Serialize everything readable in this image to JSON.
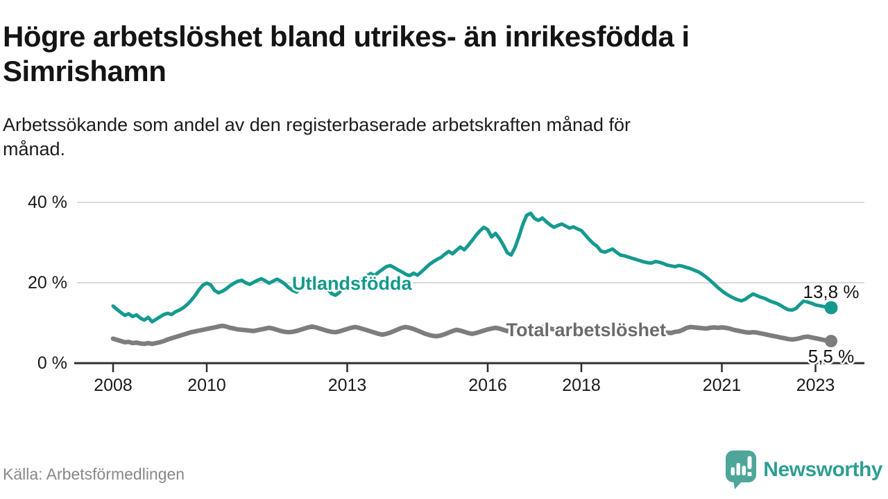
{
  "header": {
    "title": "Högre arbetslöshet bland utrikes- än inrikesfödda i\nSimrishamn",
    "subtitle": "Arbetssökande som andel av den registerbaserade arbetskraften månad för\nmånad."
  },
  "footer": {
    "source": "Källa: Arbetsförmedlingen",
    "brand": "Newsworthy"
  },
  "colors": {
    "grid": "#d8d8d8",
    "axis": "#2f2f2f",
    "tick_label": "#1a1a1a",
    "accent_teal": "#149a8e",
    "neutral_gray": "#7d7d7d",
    "logo_teal": "#4ea69a"
  },
  "chart_data": {
    "type": "line",
    "x_start": 2008,
    "x_step_months": 1,
    "x_ticks": [
      2008,
      2010,
      2013,
      2016,
      2018,
      2021,
      2023
    ],
    "y_ticks": [
      0,
      20,
      40
    ],
    "y_tick_suffix": " %",
    "ylim": [
      0,
      42
    ],
    "grid": "horizontal-only",
    "series": [
      {
        "id": "utlandsfodda",
        "name": "Utlandsfödda",
        "color": "#149a8e",
        "label_color": "#11998c",
        "end_label": "13,8 %",
        "label_pos": {
          "year": 2013.1,
          "value": 19.8
        },
        "values": [
          14.2,
          13.4,
          12.6,
          11.9,
          12.3,
          11.6,
          12.0,
          11.2,
          10.7,
          11.4,
          10.3,
          10.9,
          11.5,
          12.1,
          12.4,
          12.1,
          12.8,
          13.2,
          13.8,
          14.6,
          15.6,
          16.8,
          18.2,
          19.4,
          19.9,
          19.5,
          18.1,
          17.5,
          17.9,
          18.5,
          19.3,
          19.9,
          20.4,
          20.6,
          20.0,
          19.6,
          20.1,
          20.6,
          21.0,
          20.5,
          19.9,
          20.4,
          20.9,
          20.4,
          19.7,
          18.8,
          18.1,
          17.7,
          18.4,
          19.2,
          19.9,
          20.4,
          20.7,
          20.1,
          19.3,
          18.4,
          17.3,
          16.9,
          17.6,
          18.8,
          19.6,
          20.1,
          19.8,
          20.4,
          21.1,
          21.7,
          22.3,
          21.8,
          22.6,
          23.3,
          24.0,
          24.3,
          23.8,
          23.2,
          22.7,
          22.1,
          21.8,
          22.4,
          21.9,
          22.7,
          23.6,
          24.5,
          25.2,
          25.8,
          26.3,
          27.1,
          27.8,
          27.2,
          28.1,
          28.9,
          28.2,
          29.3,
          30.5,
          31.8,
          32.9,
          33.8,
          33.2,
          31.4,
          32.3,
          31.0,
          29.4,
          27.5,
          26.9,
          28.8,
          31.5,
          34.5,
          36.8,
          37.3,
          36.0,
          35.5,
          36.1,
          35.2,
          34.4,
          33.8,
          34.3,
          34.6,
          34.1,
          33.6,
          33.9,
          33.4,
          33.0,
          31.9,
          30.8,
          29.8,
          29.1,
          27.9,
          27.6,
          28.0,
          28.4,
          27.6,
          26.9,
          26.7,
          26.4,
          26.1,
          25.8,
          25.5,
          25.2,
          25.0,
          24.9,
          25.3,
          25.1,
          24.8,
          24.4,
          24.2,
          24.0,
          24.3,
          24.1,
          23.8,
          23.5,
          23.1,
          22.7,
          22.1,
          21.4,
          20.6,
          19.7,
          18.8,
          18.0,
          17.3,
          16.7,
          16.2,
          15.8,
          15.5,
          15.9,
          16.6,
          17.2,
          16.8,
          16.4,
          16.1,
          15.6,
          15.2,
          14.9,
          14.4,
          13.8,
          13.3,
          13.2,
          13.6,
          14.6,
          15.5,
          15.2,
          14.9,
          14.5,
          14.3,
          14.1,
          13.9,
          13.8
        ]
      },
      {
        "id": "total",
        "name": "Total arbetslöshet",
        "color": "#7d7d7d",
        "label_color": "#6b6b6b",
        "end_label": "5,5 %",
        "label_pos": {
          "year": 2018.1,
          "value": 8.3
        },
        "values": [
          6.1,
          5.8,
          5.5,
          5.2,
          5.3,
          5.0,
          5.1,
          4.9,
          4.8,
          5.0,
          4.8,
          5.0,
          5.2,
          5.5,
          5.9,
          6.2,
          6.5,
          6.8,
          7.1,
          7.4,
          7.7,
          7.9,
          8.1,
          8.3,
          8.5,
          8.7,
          8.9,
          9.1,
          9.3,
          9.1,
          8.8,
          8.6,
          8.4,
          8.3,
          8.2,
          8.1,
          8.0,
          8.2,
          8.4,
          8.6,
          8.8,
          8.6,
          8.3,
          8.0,
          7.8,
          7.7,
          7.8,
          8.0,
          8.3,
          8.6,
          8.9,
          9.1,
          8.9,
          8.6,
          8.3,
          8.0,
          7.8,
          7.7,
          7.9,
          8.2,
          8.5,
          8.8,
          9.0,
          8.8,
          8.5,
          8.2,
          7.9,
          7.6,
          7.3,
          7.1,
          7.3,
          7.6,
          8.0,
          8.4,
          8.8,
          9.0,
          8.8,
          8.5,
          8.1,
          7.7,
          7.3,
          7.0,
          6.8,
          6.7,
          6.9,
          7.2,
          7.6,
          8.0,
          8.3,
          8.1,
          7.8,
          7.5,
          7.3,
          7.5,
          7.8,
          8.1,
          8.4,
          8.6,
          8.8,
          8.6,
          8.3,
          8.0,
          8.3,
          8.6,
          8.8,
          8.9,
          8.8,
          8.7,
          8.8,
          8.9,
          9.0,
          8.8,
          8.6,
          8.4,
          8.3,
          8.5,
          8.7,
          8.8,
          8.7,
          8.6,
          8.6,
          8.7,
          8.5,
          8.3,
          8.1,
          7.9,
          7.8,
          8.0,
          8.2,
          8.1,
          8.0,
          7.9,
          8.0,
          8.1,
          8.0,
          7.9,
          7.8,
          7.7,
          7.6,
          7.7,
          7.8,
          7.7,
          7.6,
          7.5,
          7.8,
          7.9,
          8.3,
          8.8,
          9.0,
          8.9,
          8.8,
          8.7,
          8.6,
          8.8,
          8.9,
          8.8,
          8.9,
          8.8,
          8.6,
          8.3,
          8.1,
          7.9,
          7.7,
          7.6,
          7.7,
          7.6,
          7.4,
          7.2,
          7.0,
          6.8,
          6.6,
          6.4,
          6.2,
          6.0,
          5.9,
          6.0,
          6.2,
          6.5,
          6.6,
          6.4,
          6.2,
          6.0,
          5.8,
          5.6,
          5.5
        ]
      }
    ]
  }
}
